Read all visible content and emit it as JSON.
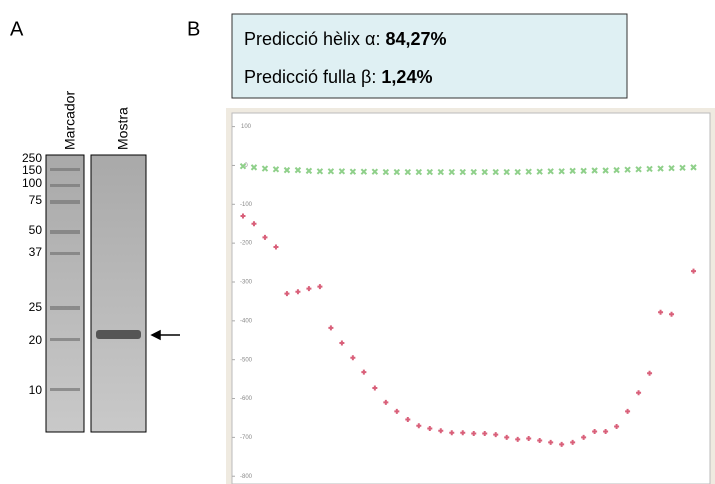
{
  "panel_labels": [
    "A",
    "B"
  ],
  "gel": {
    "lanes": [
      "Marcador",
      "Mostra"
    ],
    "markers": [
      "250",
      "150",
      "100",
      "75",
      "50",
      "37",
      "25",
      "20",
      "10"
    ]
  },
  "prediction": {
    "helix_label": "Predicció hèlix α: ",
    "helix_value": "84,27%",
    "sheet_label": "Predicció fulla β: ",
    "sheet_value": "1,24%"
  },
  "chart_data": {
    "type": "scatter",
    "xlim": [
      0,
      43.5
    ],
    "ylim": [
      -820,
      135
    ],
    "yticks": [
      100,
      0,
      -100,
      -200,
      -300,
      -400,
      -500,
      -600,
      -700,
      -800
    ],
    "series": [
      {
        "color": "#8fd08a",
        "marker": "x",
        "x": [
          1,
          2,
          3,
          4,
          5,
          6,
          7,
          8,
          9,
          10,
          11,
          12,
          13,
          14,
          15,
          16,
          17,
          18,
          19,
          20,
          21,
          22,
          23,
          24,
          25,
          26,
          27,
          28,
          29,
          30,
          31,
          32,
          33,
          34,
          35,
          36,
          37,
          38,
          39,
          40,
          41,
          42
        ],
        "values": [
          -2,
          -5,
          -8,
          -10,
          -12,
          -12,
          -14,
          -15,
          -15,
          -15,
          -16,
          -16,
          -16,
          -17,
          -17,
          -17,
          -17,
          -17,
          -17,
          -17,
          -17,
          -17,
          -17,
          -17,
          -17,
          -17,
          -16,
          -16,
          -15,
          -15,
          -14,
          -14,
          -13,
          -13,
          -12,
          -11,
          -10,
          -9,
          -8,
          -7,
          -6,
          -5
        ]
      },
      {
        "color": "#d9607a",
        "marker": "+",
        "x": [
          1,
          2,
          3,
          4,
          5,
          6,
          7,
          8,
          9,
          10,
          11,
          12,
          13,
          14,
          15,
          16,
          17,
          18,
          19,
          20,
          21,
          22,
          23,
          24,
          25,
          26,
          27,
          28,
          29,
          30,
          31,
          32,
          33,
          34,
          35,
          36,
          37,
          38,
          39,
          40,
          42
        ],
        "values": [
          -130,
          -150,
          -185,
          -210,
          -330,
          -325,
          -317,
          -312,
          -418,
          -457,
          -495,
          -532,
          -573,
          -610,
          -633,
          -654,
          -670,
          -677,
          -683,
          -688,
          -688,
          -690,
          -690,
          -693,
          -700,
          -705,
          -703,
          -708,
          -713,
          -718,
          -713,
          -700,
          -685,
          -685,
          -672,
          -633,
          -585,
          -535,
          -378,
          -383,
          -272
        ]
      }
    ]
  }
}
